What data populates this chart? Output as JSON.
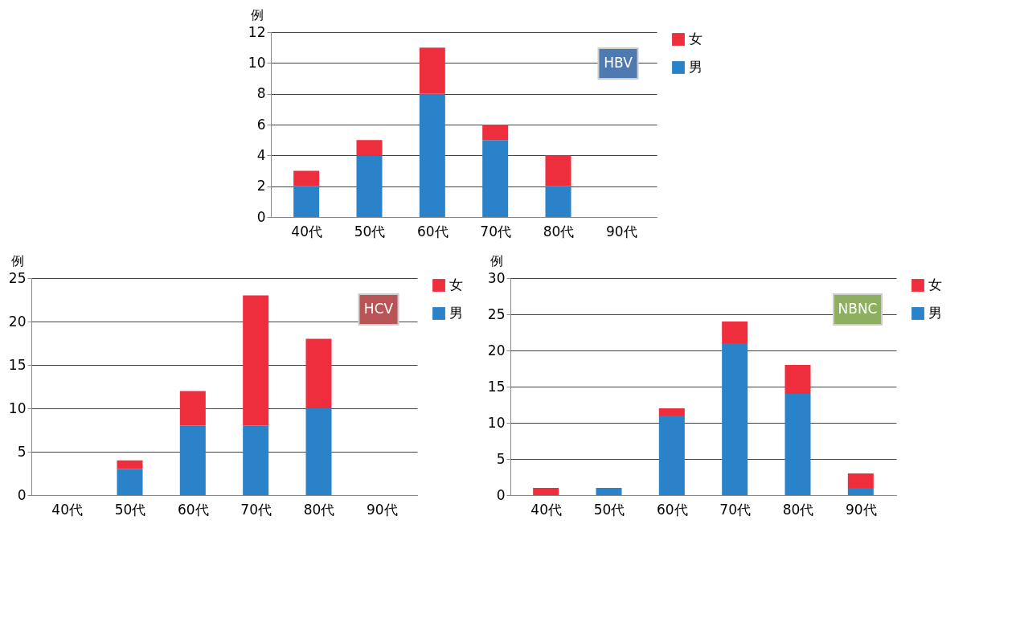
{
  "chart_data": [
    {
      "type": "bar",
      "stacked": true,
      "annotations": [
        "HBV"
      ],
      "ylabel": "例",
      "categories": [
        "40代",
        "50代",
        "60代",
        "70代",
        "80代",
        "90代"
      ],
      "ylim": [
        0,
        12
      ],
      "yticks": [
        0,
        2,
        4,
        6,
        8,
        10,
        12
      ],
      "grid": "y",
      "legend": "right",
      "series": [
        {
          "name": "男",
          "color": "#2a83c8",
          "values": [
            2,
            4,
            8,
            5,
            2,
            0
          ]
        },
        {
          "name": "女",
          "color": "#ee2d3d",
          "values": [
            1,
            1,
            3,
            1,
            2,
            0
          ]
        }
      ]
    },
    {
      "type": "bar",
      "stacked": true,
      "annotations": [
        "HCV"
      ],
      "ylabel": "例",
      "categories": [
        "40代",
        "50代",
        "60代",
        "70代",
        "80代",
        "90代"
      ],
      "ylim": [
        0,
        25
      ],
      "yticks": [
        0,
        5,
        10,
        15,
        20,
        25
      ],
      "grid": "y",
      "legend": "right",
      "series": [
        {
          "name": "男",
          "color": "#2a83c8",
          "values": [
            0,
            3,
            8,
            8,
            10,
            0
          ]
        },
        {
          "name": "女",
          "color": "#ee2d3d",
          "values": [
            0,
            1,
            4,
            15,
            8,
            0
          ]
        }
      ]
    },
    {
      "type": "bar",
      "stacked": true,
      "annotations": [
        "NBNC"
      ],
      "ylabel": "例",
      "categories": [
        "40代",
        "50代",
        "60代",
        "70代",
        "80代",
        "90代"
      ],
      "ylim": [
        0,
        30
      ],
      "yticks": [
        0,
        5,
        10,
        15,
        20,
        25,
        30
      ],
      "grid": "y",
      "legend": "right",
      "series": [
        {
          "name": "男",
          "color": "#2a83c8",
          "values": [
            0,
            1,
            11,
            21,
            14,
            1
          ]
        },
        {
          "name": "女",
          "color": "#ee2d3d",
          "values": [
            1,
            0,
            1,
            3,
            4,
            2
          ]
        }
      ]
    }
  ]
}
